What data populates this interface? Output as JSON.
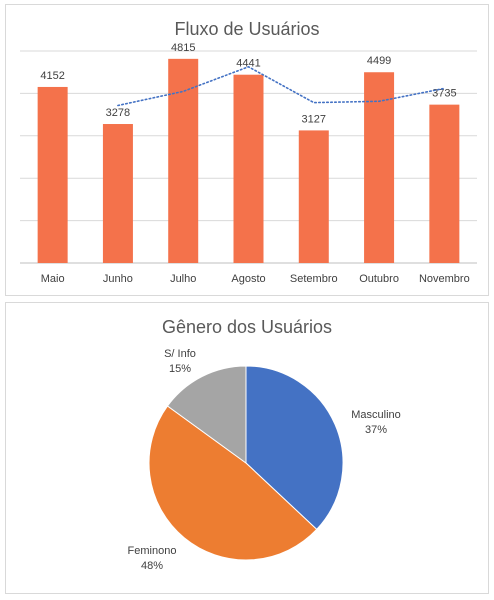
{
  "chart_data": [
    {
      "type": "bar",
      "title": "Fluxo de Usuários",
      "categories": [
        "Maio",
        "Junho",
        "Julho",
        "Agosto",
        "Setembro",
        "Outubro",
        "Novembro"
      ],
      "values": [
        4152,
        3278,
        4815,
        4441,
        3127,
        4499,
        3735
      ],
      "trendline": {
        "type": "moving-average",
        "period": 2,
        "style": "dotted"
      },
      "ylim": [
        0,
        5000
      ],
      "grid": true,
      "legend": "none",
      "colors": {
        "bar": "#F4724B",
        "trend": "#4472C4",
        "grid": "#D9D9D9"
      }
    },
    {
      "type": "pie",
      "title": "Gênero dos Usuários",
      "slices": [
        {
          "label": "Masculino",
          "value": 37,
          "display": "37%",
          "color": "#4472C4"
        },
        {
          "label": "Feminono",
          "value": 48,
          "display": "48%",
          "color": "#ED7D31"
        },
        {
          "label": "S/ Info",
          "value": 15,
          "display": "15%",
          "color": "#A5A5A5"
        }
      ],
      "legend": "none"
    }
  ]
}
